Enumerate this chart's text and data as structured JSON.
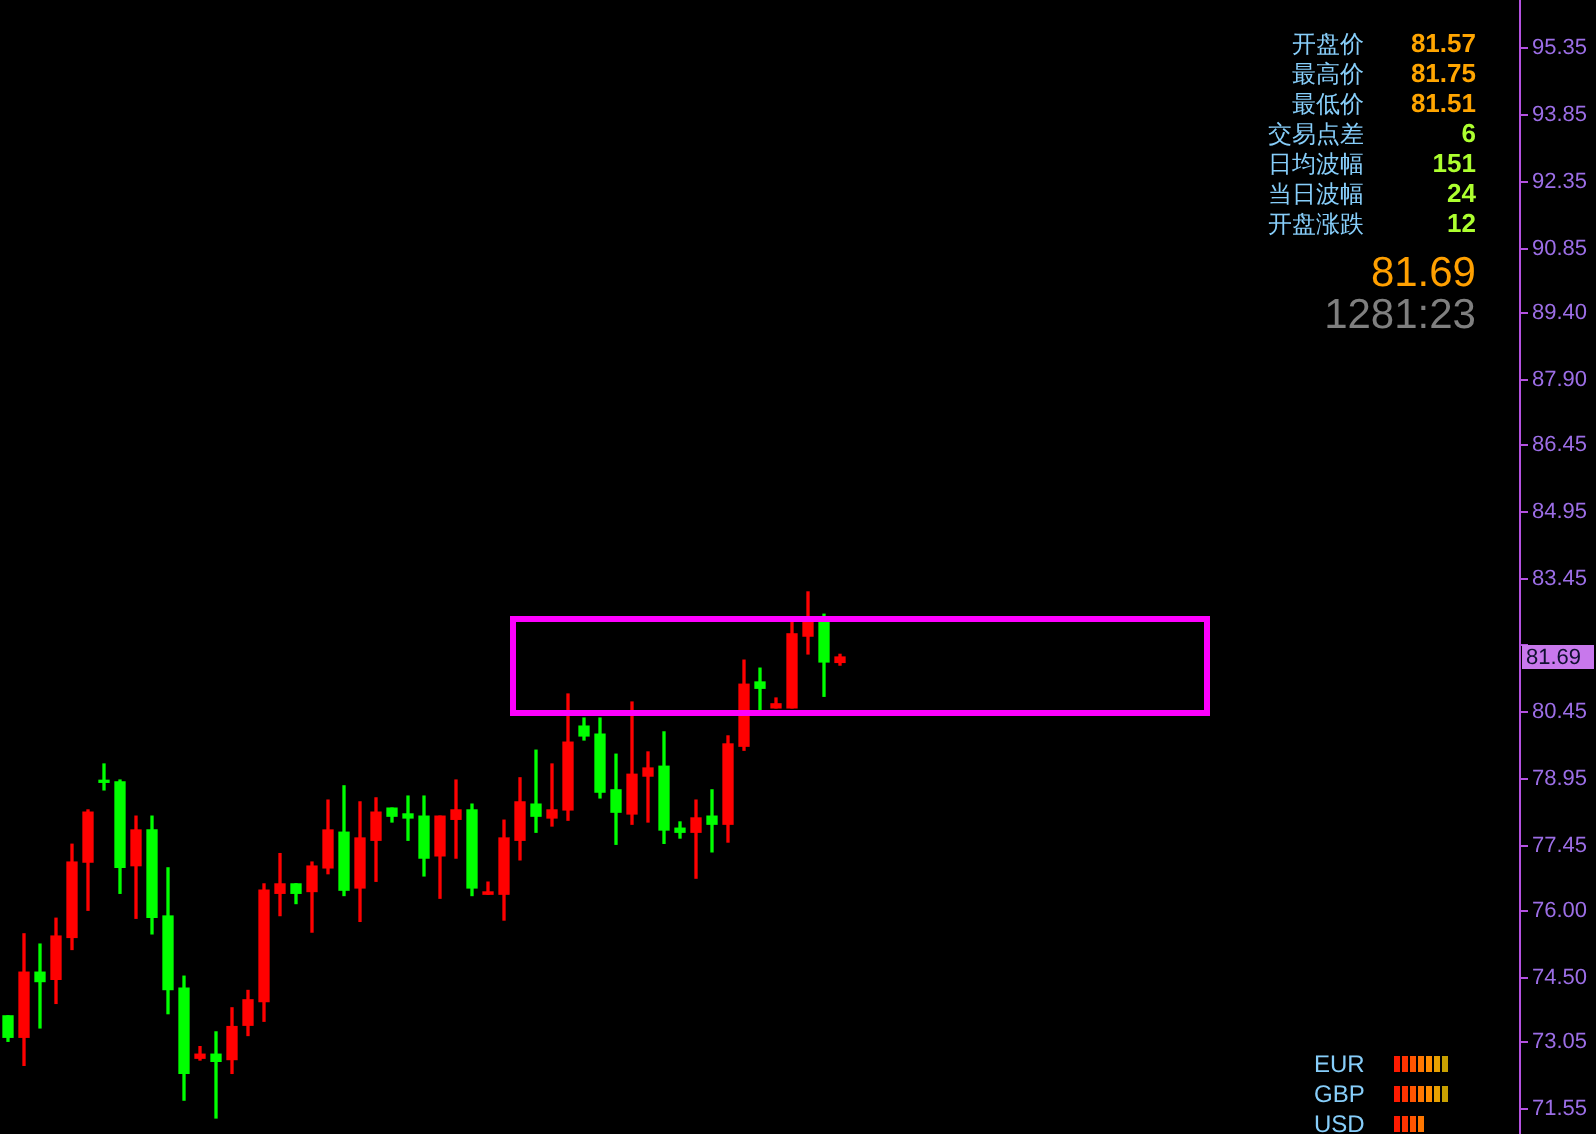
{
  "chart_data": {
    "type": "candlestick",
    "categories": [
      null,
      null,
      null,
      null,
      null,
      null,
      null,
      null,
      null,
      null,
      null,
      null,
      null,
      null,
      null,
      null,
      null,
      null,
      null,
      null,
      null,
      null,
      null,
      null,
      null,
      null,
      null,
      null,
      null,
      null,
      null,
      null,
      null,
      null,
      null,
      null,
      null,
      null,
      null,
      null,
      null,
      null,
      null,
      null,
      null,
      null,
      null,
      null,
      null,
      null,
      null,
      null,
      null,
      null,
      null,
      null,
      null,
      null,
      null,
      null,
      null,
      null,
      null,
      null,
      null,
      null,
      null,
      null,
      null,
      null,
      null,
      null,
      null,
      null,
      null,
      null,
      null,
      null,
      null,
      null,
      null,
      null,
      null,
      null,
      null,
      null,
      null,
      null,
      null,
      null,
      null,
      null,
      null,
      null,
      null
    ],
    "ohlc": [
      [
        73.64,
        73.64,
        73.07,
        73.16
      ],
      [
        73.16,
        75.48,
        72.53,
        74.62
      ],
      [
        74.62,
        75.25,
        73.37,
        74.41
      ],
      [
        74.46,
        75.83,
        73.92,
        75.43
      ],
      [
        75.4,
        77.49,
        75.13,
        77.09
      ],
      [
        77.09,
        78.26,
        76.01,
        78.21
      ],
      [
        78.9,
        79.29,
        78.71,
        78.88
      ],
      [
        78.89,
        78.93,
        76.39,
        76.97
      ],
      [
        77.01,
        78.12,
        75.83,
        77.81
      ],
      [
        77.81,
        78.12,
        75.48,
        75.85
      ],
      [
        75.88,
        76.96,
        73.69,
        74.23
      ],
      [
        74.26,
        74.53,
        71.75,
        72.35
      ],
      [
        72.69,
        72.95,
        72.65,
        72.78
      ],
      [
        72.78,
        73.28,
        71.35,
        72.62
      ],
      [
        72.66,
        73.82,
        72.35,
        73.4
      ],
      [
        73.43,
        74.21,
        73.2,
        74.0
      ],
      [
        73.96,
        76.6,
        73.52,
        76.46
      ],
      [
        76.39,
        77.28,
        75.89,
        76.6
      ],
      [
        76.6,
        76.6,
        76.16,
        76.39
      ],
      [
        76.43,
        77.09,
        75.52,
        77.0
      ],
      [
        76.96,
        78.48,
        76.83,
        77.81
      ],
      [
        77.76,
        78.8,
        76.34,
        76.46
      ],
      [
        76.51,
        78.44,
        75.76,
        77.63
      ],
      [
        77.58,
        78.53,
        76.66,
        78.21
      ],
      [
        78.3,
        78.3,
        77.99,
        78.12
      ],
      [
        78.17,
        78.57,
        77.58,
        78.08
      ],
      [
        78.12,
        78.57,
        76.78,
        77.18
      ],
      [
        77.23,
        78.12,
        76.28,
        78.12
      ],
      [
        78.05,
        78.93,
        77.18,
        78.26
      ],
      [
        78.26,
        78.39,
        76.34,
        76.51
      ],
      [
        76.37,
        76.64,
        76.37,
        76.42
      ],
      [
        76.37,
        78.03,
        75.79,
        77.63
      ],
      [
        77.58,
        78.98,
        77.14,
        78.44
      ],
      [
        78.39,
        79.6,
        77.76,
        78.12
      ],
      [
        78.08,
        79.29,
        77.9,
        78.26
      ],
      [
        78.26,
        80.86,
        78.03,
        79.78
      ],
      [
        80.14,
        80.32,
        79.83,
        79.92
      ],
      [
        79.96,
        80.32,
        78.53,
        78.66
      ],
      [
        78.71,
        79.51,
        77.49,
        78.21
      ],
      [
        78.17,
        80.68,
        77.94,
        79.06
      ],
      [
        79.02,
        79.56,
        77.99,
        79.2
      ],
      [
        79.24,
        80.01,
        77.51,
        77.81
      ],
      [
        77.85,
        77.99,
        77.63,
        77.76
      ],
      [
        77.76,
        78.48,
        76.73,
        78.08
      ],
      [
        78.12,
        78.71,
        77.32,
        77.94
      ],
      [
        77.94,
        79.92,
        77.54,
        79.74
      ],
      [
        79.69,
        81.62,
        79.6,
        81.08
      ],
      [
        81.13,
        81.44,
        80.46,
        80.99
      ],
      [
        80.55,
        80.77,
        80.55,
        80.64
      ],
      [
        80.55,
        82.47,
        80.55,
        82.21
      ],
      [
        82.16,
        83.15,
        81.76,
        82.47
      ],
      [
        82.47,
        82.65,
        80.81,
        81.58
      ],
      [
        81.57,
        81.75,
        81.51,
        81.69
      ],
      null,
      null,
      null,
      null,
      null,
      null,
      null,
      null,
      null,
      null,
      null,
      null,
      null,
      null,
      null,
      null,
      null,
      null,
      null,
      null,
      null,
      null,
      null,
      null,
      null,
      null,
      null,
      null,
      null,
      null,
      null,
      null,
      null,
      null,
      null,
      null,
      null,
      null,
      null,
      null,
      null,
      null
    ],
    "colors": [
      "#00ff00",
      "#ff0000",
      "#00ff00",
      "#ff0000",
      "#ff0000",
      "#ff0000",
      "#00ff00",
      "#00ff00",
      "#ff0000",
      "#00ff00",
      "#00ff00",
      "#00ff00",
      "#ff0000",
      "#00ff00",
      "#ff0000",
      "#ff0000",
      "#ff0000",
      "#ff0000",
      "#00ff00",
      "#ff0000",
      "#ff0000",
      "#00ff00",
      "#ff0000",
      "#ff0000",
      "#00ff00",
      "#00ff00",
      "#00ff00",
      "#ff0000",
      "#ff0000",
      "#00ff00",
      "#ff0000",
      "#ff0000",
      "#ff0000",
      "#00ff00",
      "#ff0000",
      "#ff0000",
      "#00ff00",
      "#00ff00",
      "#00ff00",
      "#ff0000",
      "#ff0000",
      "#00ff00",
      "#00ff00",
      "#ff0000",
      "#00ff00",
      "#ff0000",
      "#ff0000",
      "#00ff00",
      "#ff0000",
      "#ff0000",
      "#ff0000",
      "#00ff00",
      "#ff0000",
      null,
      null,
      null,
      null,
      null,
      null,
      null,
      null,
      null,
      null,
      null,
      null,
      null,
      null,
      null,
      null,
      null,
      null,
      null,
      null,
      null,
      null,
      null,
      null,
      null,
      null,
      null,
      null,
      null,
      null,
      null,
      null,
      null,
      null,
      null,
      null,
      null,
      null,
      null,
      null,
      null,
      null
    ],
    "ylim": [
      70.99,
      96.43
    ],
    "yticks": [
      71.55,
      73.05,
      {
        "value": 74.5,
        "label": "74.50"
      },
      {
        "value": 76,
        "label": "76.00"
      },
      77.45,
      78.95,
      80.45,
      {
        "value": 81.95,
        "label": null
      },
      83.45,
      84.95,
      86.45,
      {
        "value": 87.9,
        "label": "87.90"
      },
      {
        "value": 89.4,
        "label": "89.40"
      },
      90.85,
      92.35,
      93.85,
      95.35
    ],
    "annotations": [
      "开盘价",
      "81.57",
      "最高价",
      "81.75",
      "最低价",
      "81.51",
      "交易点差",
      "6",
      "日均波幅",
      "151",
      "当日波幅",
      "24",
      "开盘涨跌",
      "12",
      "81.69",
      "1281:23",
      "EUR",
      "GBP",
      "USD",
      "81.69"
    ]
  }
}
